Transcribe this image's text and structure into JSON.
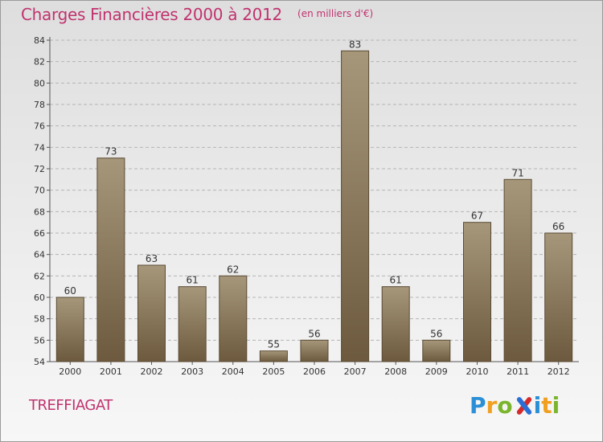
{
  "header": {
    "title": "Charges Financières 2000 à 2012",
    "subtitle": "(en milliers d'€)"
  },
  "footer": {
    "commune": "TREFFIAGAT",
    "logo_text": "Proxiti",
    "logo_letters": [
      "P",
      "r",
      "o",
      "x",
      "i",
      "t",
      "i"
    ],
    "logo_colors": [
      "#2b8fd6",
      "#f0a020",
      "#7ab52c",
      "",
      "#2b8fd6",
      "#f0a020",
      "#7ab52c"
    ]
  },
  "colors": {
    "title": "#c0336f",
    "bar_top": "#a6977b",
    "bar_bottom": "#6d5a3e",
    "bar_stroke": "#5a4a33",
    "grid": "#b5b5b5",
    "axis_text": "#333333"
  },
  "chart_data": {
    "type": "bar",
    "title": "Charges Financières 2000 à 2012",
    "subtitle": "(en milliers d'€)",
    "categories": [
      "2000",
      "2001",
      "2002",
      "2003",
      "2004",
      "2005",
      "2006",
      "2007",
      "2008",
      "2009",
      "2010",
      "2011",
      "2012"
    ],
    "values": [
      60,
      73,
      63,
      61,
      62,
      55,
      56,
      83,
      61,
      56,
      67,
      71,
      66
    ],
    "ylim": [
      54,
      84
    ],
    "yticks": [
      54,
      56,
      58,
      60,
      62,
      64,
      66,
      68,
      70,
      72,
      74,
      76,
      78,
      80,
      82,
      84
    ],
    "grid": true,
    "data_labels": true,
    "xlabel": "",
    "ylabel": ""
  }
}
